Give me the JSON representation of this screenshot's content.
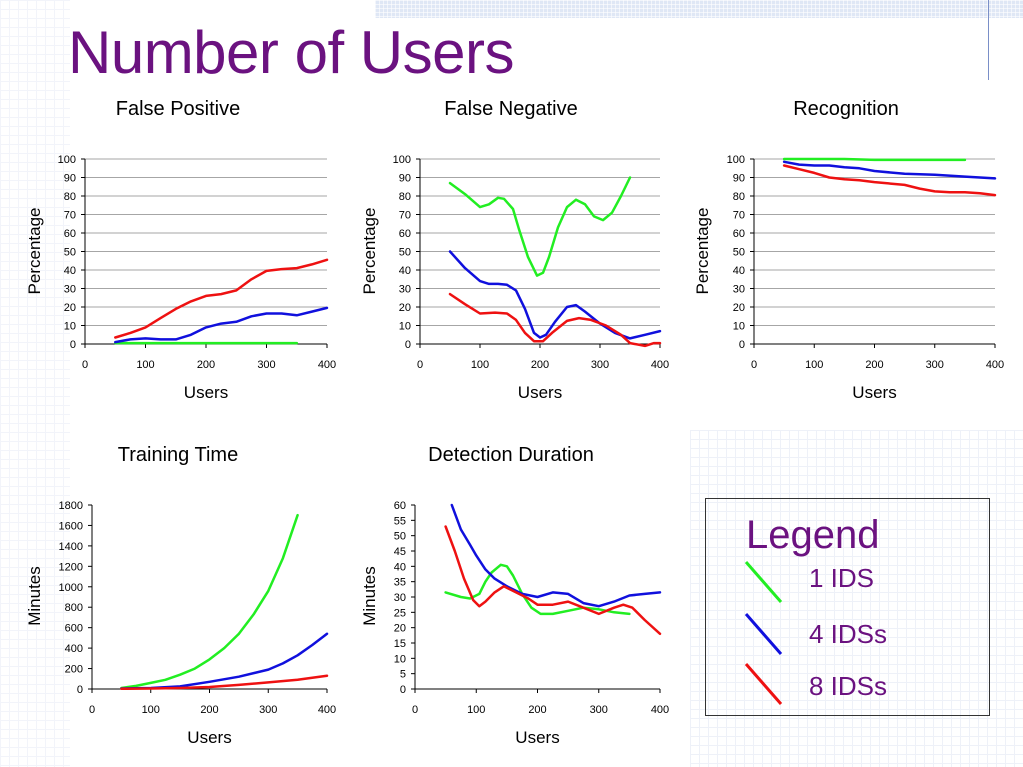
{
  "slide": {
    "title": "Number of Users"
  },
  "legend": {
    "title": "Legend",
    "items": [
      {
        "label": "1 IDS",
        "color": "#22ee22"
      },
      {
        "label": "4 IDSs",
        "color": "#1010dd"
      },
      {
        "label": "8 IDSs",
        "color": "#ee1111"
      }
    ]
  },
  "chart_data": [
    {
      "type": "line",
      "title": "False Positive",
      "xlabel": "Users",
      "ylabel": "Percentage",
      "xlim": [
        0,
        400
      ],
      "ylim": [
        0,
        100
      ],
      "xticks": [
        0,
        100,
        200,
        300,
        400
      ],
      "yticks": [
        0,
        10,
        20,
        30,
        40,
        50,
        60,
        70,
        80,
        90,
        100
      ],
      "grid": true,
      "series": [
        {
          "color": "#22ee22",
          "x": [
            50,
            100,
            150,
            200,
            250,
            300,
            350
          ],
          "y": [
            0.5,
            0.5,
            0.5,
            0.5,
            0.5,
            0.5,
            0.5
          ]
        },
        {
          "color": "#1010dd",
          "x": [
            50,
            75,
            100,
            125,
            150,
            175,
            200,
            225,
            250,
            275,
            300,
            325,
            350,
            375,
            400
          ],
          "y": [
            1,
            2.5,
            3,
            2.5,
            2.5,
            5,
            9,
            11,
            12,
            15,
            16.5,
            16.5,
            15.5,
            17.5,
            19.5
          ]
        },
        {
          "color": "#ee1111",
          "x": [
            50,
            75,
            100,
            125,
            150,
            175,
            200,
            225,
            250,
            275,
            300,
            325,
            350,
            375,
            400
          ],
          "y": [
            3.5,
            6,
            9,
            14,
            19,
            23,
            26,
            27,
            29,
            35,
            39.5,
            40.5,
            41,
            43,
            45.5
          ]
        }
      ]
    },
    {
      "type": "line",
      "title": "False Negative",
      "xlabel": "Users",
      "ylabel": "Percentage",
      "xlim": [
        0,
        400
      ],
      "ylim": [
        0,
        100
      ],
      "xticks": [
        0,
        100,
        200,
        300,
        400
      ],
      "yticks": [
        0,
        10,
        20,
        30,
        40,
        50,
        60,
        70,
        80,
        90,
        100
      ],
      "grid": true,
      "series": [
        {
          "color": "#22ee22",
          "x": [
            50,
            75,
            100,
            115,
            130,
            140,
            155,
            165,
            180,
            195,
            205,
            215,
            230,
            245,
            260,
            275,
            290,
            305,
            320,
            335,
            350
          ],
          "y": [
            87,
            81,
            74,
            75.5,
            79,
            78.5,
            73,
            62,
            47,
            37,
            38.5,
            47,
            63,
            74,
            78,
            75.5,
            69,
            67,
            71,
            80,
            90
          ]
        },
        {
          "color": "#1010dd",
          "x": [
            50,
            75,
            100,
            115,
            130,
            145,
            160,
            175,
            190,
            200,
            210,
            225,
            245,
            260,
            275,
            300,
            325,
            350,
            375,
            400
          ],
          "y": [
            50,
            41,
            34,
            32.5,
            32.5,
            32,
            29,
            19,
            6,
            3.5,
            5,
            12,
            20,
            21,
            17.5,
            11,
            6,
            3,
            5,
            7
          ]
        },
        {
          "color": "#ee1111",
          "x": [
            50,
            75,
            100,
            125,
            145,
            160,
            175,
            190,
            205,
            220,
            245,
            265,
            285,
            310,
            335,
            350,
            375,
            390,
            400
          ],
          "y": [
            27,
            21.5,
            16.5,
            17,
            16.5,
            13,
            6,
            1.5,
            1.5,
            6,
            12.5,
            14,
            13,
            10,
            5,
            0.5,
            -1,
            0.5,
            0.5
          ]
        }
      ]
    },
    {
      "type": "line",
      "title": "Recognition",
      "xlabel": "Users",
      "ylabel": "Percentage",
      "xlim": [
        0,
        400
      ],
      "ylim": [
        0,
        100
      ],
      "xticks": [
        0,
        100,
        200,
        300,
        400
      ],
      "yticks": [
        0,
        10,
        20,
        30,
        40,
        50,
        60,
        70,
        80,
        90,
        100
      ],
      "grid": true,
      "series": [
        {
          "color": "#22ee22",
          "x": [
            50,
            100,
            150,
            200,
            250,
            300,
            350
          ],
          "y": [
            100,
            100,
            100,
            99.5,
            99.5,
            99.5,
            99.5
          ]
        },
        {
          "color": "#1010dd",
          "x": [
            50,
            75,
            100,
            125,
            150,
            175,
            200,
            250,
            300,
            350,
            400
          ],
          "y": [
            98.5,
            97,
            96.5,
            96.5,
            95.5,
            95,
            93.5,
            92,
            91.5,
            90.5,
            89.5
          ]
        },
        {
          "color": "#ee1111",
          "x": [
            50,
            75,
            100,
            125,
            150,
            175,
            200,
            250,
            275,
            300,
            325,
            350,
            375,
            400
          ],
          "y": [
            96.5,
            94.5,
            92.5,
            90,
            89,
            88.5,
            87.5,
            86,
            84,
            82.5,
            82,
            82,
            81.5,
            80.5
          ]
        }
      ]
    },
    {
      "type": "line",
      "title": "Training Time",
      "xlabel": "Users",
      "ylabel": "Minutes",
      "xlim": [
        0,
        400
      ],
      "ylim": [
        0,
        1800
      ],
      "xticks": [
        0,
        100,
        200,
        300,
        400
      ],
      "yticks": [
        0,
        200,
        400,
        600,
        800,
        1000,
        1200,
        1400,
        1600,
        1800
      ],
      "grid": false,
      "series": [
        {
          "color": "#22ee22",
          "x": [
            50,
            75,
            100,
            125,
            150,
            175,
            200,
            225,
            250,
            275,
            300,
            325,
            350
          ],
          "y": [
            10,
            30,
            60,
            90,
            140,
            200,
            290,
            400,
            540,
            730,
            960,
            1280,
            1700
          ]
        },
        {
          "color": "#1010dd",
          "x": [
            50,
            100,
            150,
            200,
            250,
            300,
            325,
            350,
            375,
            400
          ],
          "y": [
            5,
            10,
            25,
            70,
            120,
            190,
            250,
            330,
            430,
            540
          ]
        },
        {
          "color": "#ee1111",
          "x": [
            50,
            100,
            150,
            200,
            250,
            300,
            350,
            400
          ],
          "y": [
            2,
            5,
            10,
            20,
            40,
            65,
            90,
            130
          ]
        }
      ]
    },
    {
      "type": "line",
      "title": "Detection Duration",
      "xlabel": "Users",
      "ylabel": "Minutes",
      "xlim": [
        0,
        400
      ],
      "ylim": [
        0,
        60
      ],
      "xticks": [
        0,
        100,
        200,
        300,
        400
      ],
      "yticks": [
        0,
        5,
        10,
        15,
        20,
        25,
        30,
        35,
        40,
        45,
        50,
        55,
        60
      ],
      "grid": false,
      "series": [
        {
          "color": "#22ee22",
          "x": [
            50,
            75,
            90,
            105,
            115,
            125,
            140,
            150,
            160,
            175,
            190,
            205,
            225,
            250,
            275,
            300,
            325,
            350
          ],
          "y": [
            31.5,
            30,
            29.5,
            31,
            35,
            38,
            40.5,
            40,
            37,
            31,
            26.5,
            24.5,
            24.5,
            25.5,
            26.5,
            26,
            25,
            24.5
          ]
        },
        {
          "color": "#1010dd",
          "x": [
            60,
            75,
            90,
            100,
            115,
            130,
            150,
            175,
            200,
            225,
            250,
            275,
            300,
            325,
            350,
            375,
            400
          ],
          "y": [
            60,
            52,
            47,
            43.5,
            39,
            36,
            33.5,
            31,
            30,
            31.5,
            31,
            28,
            27,
            28.5,
            30.5,
            31,
            31.5
          ]
        },
        {
          "color": "#ee1111",
          "x": [
            50,
            65,
            80,
            95,
            105,
            115,
            130,
            145,
            165,
            185,
            200,
            225,
            250,
            275,
            300,
            325,
            340,
            355,
            375,
            400
          ],
          "y": [
            53,
            45,
            36,
            29,
            27,
            28.5,
            31.5,
            33.5,
            31.5,
            29.5,
            27.5,
            27.5,
            28.5,
            26.5,
            24.5,
            26.5,
            27.5,
            26.5,
            22.5,
            18
          ]
        }
      ]
    }
  ]
}
